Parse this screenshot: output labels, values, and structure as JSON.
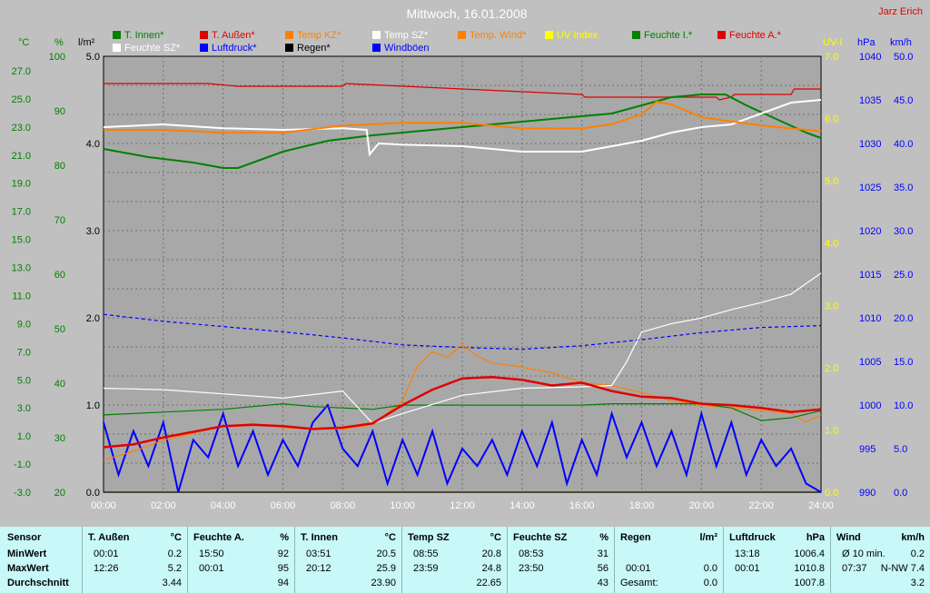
{
  "title": "Mittwoch, 16.01.2008",
  "author": "Jarz Erich",
  "legend": [
    {
      "label": "T. Innen*",
      "color": "#008000"
    },
    {
      "label": "T. Außen*",
      "color": "#e00000"
    },
    {
      "label": "Temp KZ*",
      "color": "#ff8000"
    },
    {
      "label": "Temp SZ*",
      "color": "#ffffff"
    },
    {
      "label": "Temp. Wind*",
      "color": "#ff8000"
    },
    {
      "label": "UV Index",
      "color": "#ffff00"
    },
    {
      "label": "Feuchte I.*",
      "color": "#008000"
    },
    {
      "label": "Feuchte A.*",
      "color": "#e00000"
    },
    {
      "label": "Feuchte SZ*",
      "color": "#ffffff"
    },
    {
      "label": "Luftdruck*",
      "color": "#0000ff"
    },
    {
      "label": "Regen*",
      "color": "#000000"
    },
    {
      "label": "Windböen",
      "color": "#0000ff"
    }
  ],
  "axes": {
    "temp": {
      "unit": "°C",
      "color": "#008000",
      "ticks": [
        "27.0",
        "25.0",
        "23.0",
        "21.0",
        "19.0",
        "17.0",
        "15.0",
        "13.0",
        "11.0",
        "9.0",
        "7.0",
        "5.0",
        "3.0",
        "1.0",
        "-1.0",
        "-3.0"
      ]
    },
    "hum": {
      "unit": "%",
      "color": "#008000",
      "ticks": [
        "100",
        "90",
        "80",
        "70",
        "60",
        "50",
        "40",
        "30",
        "20"
      ]
    },
    "rain": {
      "unit": "l/m²",
      "color": "#000000",
      "ticks": [
        "5.0",
        "4.0",
        "3.0",
        "2.0",
        "1.0",
        "0.0"
      ]
    },
    "uv": {
      "unit": "UV-I",
      "color": "#ffff00",
      "ticks": [
        "7.0",
        "6.0",
        "5.0",
        "4.0",
        "3.0",
        "2.0",
        "1.0",
        "0.0"
      ]
    },
    "press": {
      "unit": "hPa",
      "color": "#0000ff",
      "ticks": [
        "1040",
        "1035",
        "1030",
        "1025",
        "1020",
        "1015",
        "1010",
        "1005",
        "1000",
        "995",
        "990"
      ]
    },
    "wind": {
      "unit": "km/h",
      "color": "#0000ff",
      "ticks": [
        "50.0",
        "45.0",
        "40.0",
        "35.0",
        "30.0",
        "25.0",
        "20.0",
        "15.0",
        "10.0",
        "5.0",
        "0.0"
      ]
    },
    "time": [
      "00:00",
      "02:00",
      "04:00",
      "06:00",
      "08:00",
      "10:00",
      "12:00",
      "14:00",
      "16:00",
      "18:00",
      "20:00",
      "22:00",
      "24:00"
    ]
  },
  "chart_data": {
    "type": "line",
    "title": "Mittwoch, 16.01.2008",
    "x_range": [
      "00:00",
      "24:00"
    ],
    "grid": true,
    "legend_position": "top",
    "series": [
      {
        "name": "Feuchte A.*",
        "axis": "hum",
        "color": "#e00000",
        "x": [
          0,
          3.5,
          4.5,
          8,
          8.1,
          12,
          16,
          16.1,
          20.5,
          20.6,
          21,
          21.1,
          23,
          23.1,
          24
        ],
        "values": [
          95,
          95,
          94.5,
          94.5,
          95,
          94,
          93,
          92.5,
          92.5,
          92,
          92.5,
          93,
          93,
          94,
          94
        ]
      },
      {
        "name": "Feuchte I.*",
        "axis": "hum",
        "color": "#008000",
        "x": [
          0,
          1.5,
          3,
          4,
          4.5,
          6,
          7.5,
          9,
          10,
          12,
          14,
          16,
          17,
          18,
          19,
          20,
          20.8,
          21.5,
          22.5,
          23.5,
          24
        ],
        "values": [
          83,
          81.5,
          80.5,
          79.5,
          79.5,
          82.5,
          84.5,
          85.5,
          86,
          87,
          88,
          89,
          89.5,
          91,
          92.5,
          93,
          93,
          91,
          88.5,
          86,
          85
        ]
      },
      {
        "name": "Feuchte SZ*",
        "axis": "hum",
        "color": "#ffffff",
        "x": [
          0,
          2,
          4,
          6,
          8,
          8.8,
          8.9,
          9.2,
          10,
          12,
          14,
          16,
          17,
          18,
          19,
          20,
          21,
          22,
          23,
          24
        ],
        "values": [
          87,
          87.5,
          86.8,
          86.5,
          86.8,
          86.5,
          82,
          84,
          83.8,
          83.5,
          82.5,
          82.5,
          83.5,
          84.5,
          86,
          87,
          87.5,
          89.5,
          91.5,
          92
        ]
      },
      {
        "name": "Temp KZ*",
        "axis": "temp",
        "color": "#ff8000",
        "x": [
          0,
          2,
          4,
          6,
          8,
          10,
          12,
          14,
          16,
          17,
          18,
          18.5,
          19,
          20,
          22,
          24
        ],
        "values": [
          22.8,
          22.8,
          22.6,
          22.6,
          23.1,
          23.3,
          23.3,
          22.9,
          22.9,
          23.2,
          23.9,
          24.8,
          24.6,
          23.7,
          23.1,
          22.7
        ]
      },
      {
        "name": "T. Außen*",
        "axis": "temp",
        "color": "#e00000",
        "x": [
          0,
          1,
          2,
          3,
          4,
          5,
          6,
          7,
          8,
          9,
          10,
          11,
          12,
          13,
          14,
          15,
          16,
          17,
          18,
          19,
          20,
          21,
          22,
          23,
          24
        ],
        "values": [
          0.2,
          0.4,
          0.9,
          1.3,
          1.7,
          1.8,
          1.7,
          1.5,
          1.6,
          1.9,
          3.2,
          4.3,
          5.1,
          5.2,
          5.0,
          4.6,
          4.8,
          4.2,
          3.8,
          3.7,
          3.3,
          3.2,
          3.0,
          2.7,
          2.9
        ]
      },
      {
        "name": "T. Innen*",
        "axis": "temp",
        "color": "#008000",
        "x": [
          0,
          2,
          4,
          6,
          7,
          8,
          9,
          10,
          11,
          12,
          14,
          16,
          17,
          18,
          19,
          20,
          21,
          22,
          23,
          24
        ],
        "values": [
          2.5,
          2.7,
          2.9,
          3.3,
          3.1,
          3.0,
          2.9,
          3.2,
          3.2,
          3.2,
          3.2,
          3.2,
          3.3,
          3.3,
          3.3,
          3.3,
          3.0,
          2.1,
          2.3,
          2.8
        ]
      },
      {
        "name": "Temp SZ*",
        "axis": "temp",
        "color": "#ffffff",
        "x": [
          0,
          2,
          4,
          6,
          8,
          9,
          10,
          12,
          14,
          16,
          17,
          17.5,
          18,
          19,
          20,
          21,
          22,
          23,
          24
        ],
        "values": [
          4.4,
          4.3,
          4.0,
          3.7,
          4.2,
          1.9,
          2.6,
          3.9,
          4.4,
          4.5,
          4.6,
          6.3,
          8.4,
          9.0,
          9.4,
          10.0,
          10.5,
          11.1,
          12.6
        ]
      },
      {
        "name": "Temp. Wind*",
        "axis": "temp",
        "color": "#ff8000",
        "x": [
          0,
          1,
          2,
          3,
          4,
          5,
          6,
          7,
          8,
          9,
          10,
          10.5,
          11,
          11.5,
          12,
          12.5,
          13,
          14,
          15,
          16,
          17,
          18,
          19,
          20,
          21,
          22,
          23,
          23.5,
          24
        ],
        "values": [
          -0.7,
          -0.1,
          0.7,
          1.2,
          1.7,
          1.9,
          1.6,
          1.5,
          1.5,
          1.8,
          3.5,
          6.0,
          7.0,
          6.6,
          7.5,
          6.7,
          6.2,
          5.9,
          5.5,
          4.8,
          4.6,
          4.1,
          3.5,
          3.2,
          3.0,
          2.8,
          2.6,
          2.0,
          2.5
        ]
      },
      {
        "name": "Luftdruck*",
        "axis": "press",
        "color": "#0000ff",
        "x": [
          0,
          2,
          4,
          6,
          8,
          10,
          12,
          14,
          16,
          18,
          20,
          22,
          24
        ],
        "values": [
          1010.4,
          1009.6,
          1009.0,
          1008.4,
          1007.7,
          1006.9,
          1006.6,
          1006.4,
          1006.8,
          1007.5,
          1008.3,
          1008.9,
          1009.1
        ]
      },
      {
        "name": "Windböen",
        "axis": "wind",
        "color": "#0000ff",
        "x": [
          0,
          0.5,
          1,
          1.5,
          2,
          2.5,
          3,
          3.5,
          4,
          4.5,
          5,
          5.5,
          6,
          6.5,
          7,
          7.5,
          8,
          8.5,
          9,
          9.5,
          10,
          10.5,
          11,
          11.5,
          12,
          12.5,
          13,
          13.5,
          14,
          14.5,
          15,
          15.5,
          16,
          16.5,
          17,
          17.5,
          18,
          18.5,
          19,
          19.5,
          20,
          20.5,
          21,
          21.5,
          22,
          22.5,
          23,
          23.5,
          24
        ],
        "values": [
          8,
          2,
          7,
          3,
          8,
          0,
          6,
          4,
          9,
          3,
          7,
          2,
          6,
          3,
          8,
          10,
          5,
          3,
          7,
          1,
          6,
          2,
          7,
          1,
          5,
          3,
          6,
          2,
          7,
          3,
          8,
          1,
          6,
          2,
          9,
          4,
          8,
          3,
          7,
          2,
          9,
          3,
          8,
          2,
          6,
          3,
          5,
          1,
          0
        ]
      },
      {
        "name": "UV Index",
        "axis": "uv",
        "color": "#ffff00",
        "x": [
          0,
          24
        ],
        "values": [
          0,
          0
        ]
      },
      {
        "name": "Regen*",
        "axis": "rain",
        "color": "#000000",
        "x": [
          0,
          24
        ],
        "values": [
          0,
          0
        ]
      }
    ]
  },
  "stats": {
    "headers": {
      "sensor": "Sensor",
      "min": "MinWert",
      "max": "MaxWert",
      "avg": "Durchschnitt"
    },
    "columns": [
      {
        "title": "T. Außen",
        "unit": "°C",
        "min_time": "00:01",
        "min": "0.2",
        "max_time": "12:26",
        "max": "5.2",
        "avg_label": "",
        "avg": "3.44"
      },
      {
        "title": "Feuchte A.",
        "unit": "%",
        "min_time": "15:50",
        "min": "92",
        "max_time": "00:01",
        "max": "95",
        "avg_label": "",
        "avg": "94"
      },
      {
        "title": "T. Innen",
        "unit": "°C",
        "min_time": "03:51",
        "min": "20.5",
        "max_time": "20:12",
        "max": "25.9",
        "avg_label": "",
        "avg": "23.90"
      },
      {
        "title": "Temp SZ",
        "unit": "°C",
        "min_time": "08:55",
        "min": "20.8",
        "max_time": "23:59",
        "max": "24.8",
        "avg_label": "",
        "avg": "22.65"
      },
      {
        "title": "Feuchte SZ",
        "unit": "%",
        "min_time": "08:53",
        "min": "31",
        "max_time": "23:50",
        "max": "56",
        "avg_label": "",
        "avg": "43"
      },
      {
        "title": "Regen",
        "unit": "l/m²",
        "min_time": "",
        "min": "",
        "max_time": "00:01",
        "max": "0.0",
        "avg_label": "Gesamt:",
        "avg": "0.0"
      },
      {
        "title": "Luftdruck",
        "unit": "hPa",
        "min_time": "13:18",
        "min": "1006.4",
        "max_time": "00:01",
        "max": "1010.8",
        "avg_label": "",
        "avg": "1007.8"
      },
      {
        "title": "Wind",
        "unit": "km/h",
        "min_time": "Ø 10 min.",
        "min": "0.2",
        "max_time": "07:37",
        "max": "N-NW 7.4",
        "avg_label": "",
        "avg": "3.2"
      }
    ]
  }
}
